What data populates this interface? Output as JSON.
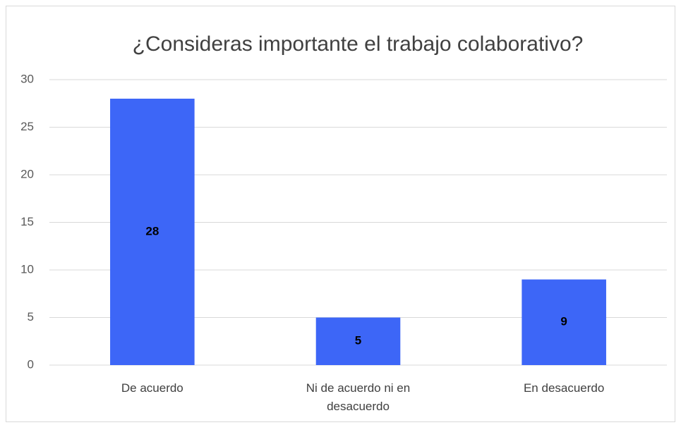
{
  "chart_data": {
    "type": "bar",
    "title": "¿Consideras importante el trabajo colaborativo?",
    "categories": [
      "De acuerdo",
      "Ni de acuerdo ni en desacuerdo",
      "En desacuerdo"
    ],
    "values": [
      28,
      5,
      9
    ],
    "color": "#3d66f7",
    "ylim": [
      0,
      30
    ],
    "yticks": [
      0,
      5,
      10,
      15,
      20,
      25,
      30
    ],
    "grid": true
  }
}
